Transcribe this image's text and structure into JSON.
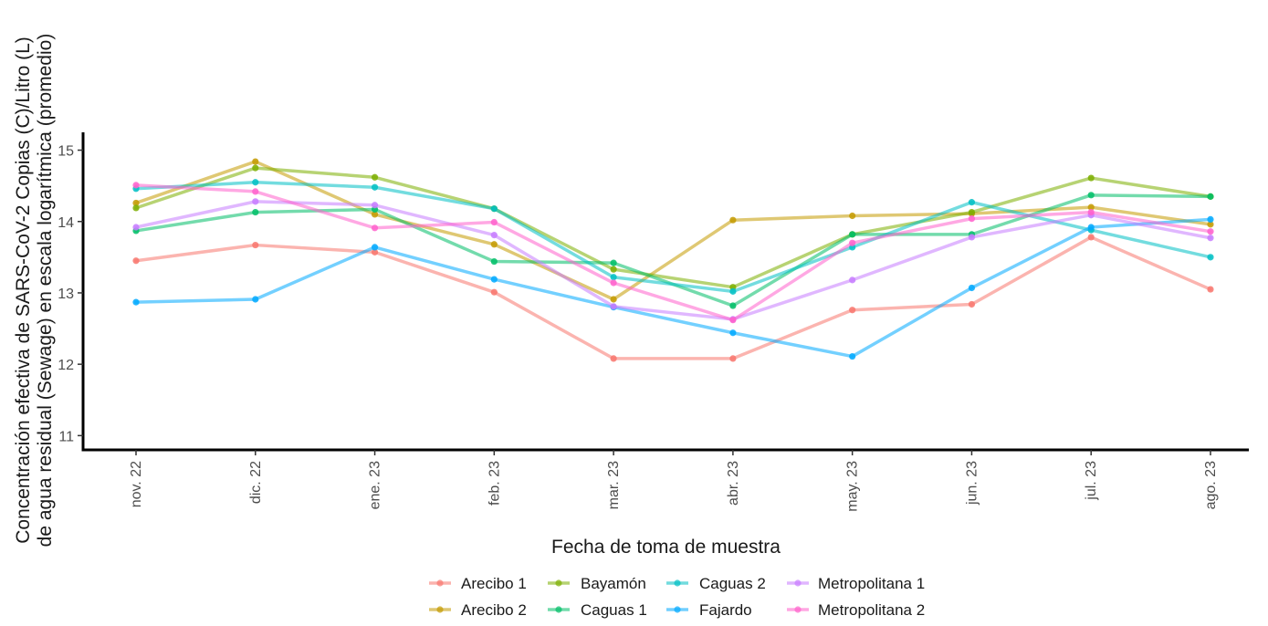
{
  "chart_data": {
    "type": "line",
    "xlabel": "Fecha de toma de muestra",
    "ylabel_lines": [
      "Concentración efectiva de SARS-CoV-2 Copias (C)/Litro (L)",
      "de agua residual (Sewage) en escala logarítmica (promedio)"
    ],
    "categories": [
      "nov. 22",
      "dic. 22",
      "ene. 23",
      "feb. 23",
      "mar. 23",
      "abr. 23",
      "may. 23",
      "jun. 23",
      "jul. 23",
      "ago. 23"
    ],
    "ylim": [
      10.8,
      15.25
    ],
    "yticks": [
      "11",
      "12",
      "13",
      "14",
      "15"
    ],
    "grid": false,
    "legend_position": "bottom",
    "series": [
      {
        "name": "Arecibo 1",
        "color": "#f8766d",
        "values": [
          13.45,
          13.67,
          13.57,
          13.01,
          12.08,
          12.08,
          12.76,
          12.84,
          13.78,
          13.05
        ]
      },
      {
        "name": "Arecibo 2",
        "color": "#c49a00",
        "values": [
          14.26,
          14.84,
          14.1,
          13.68,
          12.91,
          14.02,
          14.08,
          14.11,
          14.2,
          13.96
        ]
      },
      {
        "name": "Bayamón",
        "color": "#7cae00",
        "values": [
          14.19,
          14.75,
          14.62,
          14.18,
          13.33,
          13.08,
          13.82,
          14.13,
          14.61,
          14.35
        ]
      },
      {
        "name": "Caguas 1",
        "color": "#00be67",
        "values": [
          13.87,
          14.13,
          14.17,
          13.44,
          13.42,
          12.82,
          13.82,
          13.82,
          14.37,
          14.35
        ]
      },
      {
        "name": "Caguas 2",
        "color": "#00bfc4",
        "values": [
          14.46,
          14.55,
          14.48,
          14.18,
          13.22,
          13.02,
          13.64,
          14.27,
          13.88,
          13.5
        ]
      },
      {
        "name": "Fajardo",
        "color": "#00a9ff",
        "values": [
          12.87,
          12.91,
          13.64,
          13.19,
          12.8,
          12.44,
          12.11,
          13.07,
          13.92,
          14.03
        ]
      },
      {
        "name": "Metropolitana 1",
        "color": "#c77cff",
        "values": [
          13.92,
          14.28,
          14.23,
          13.81,
          12.81,
          12.63,
          13.18,
          13.78,
          14.09,
          13.77
        ]
      },
      {
        "name": "Metropolitana 2",
        "color": "#ff61cc",
        "values": [
          14.51,
          14.42,
          13.91,
          13.99,
          13.14,
          12.62,
          13.7,
          14.04,
          14.13,
          13.86
        ]
      }
    ]
  }
}
